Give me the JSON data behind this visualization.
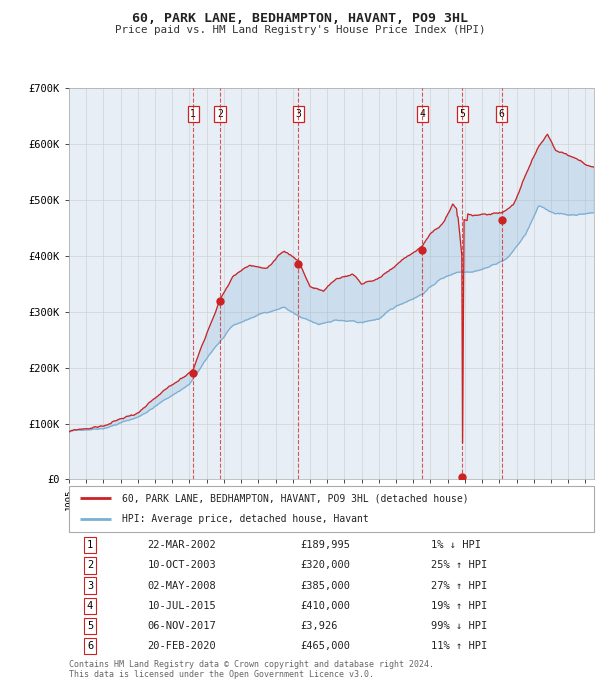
{
  "title": "60, PARK LANE, BEDHAMPTON, HAVANT, PO9 3HL",
  "subtitle": "Price paid vs. HM Land Registry's House Price Index (HPI)",
  "hpi_color": "#7bafd4",
  "price_color": "#cc2222",
  "background_color": "#ffffff",
  "plot_bg_color": "#e8eef6",
  "grid_color": "#cccccc",
  "ylim": [
    0,
    700000
  ],
  "yticks": [
    0,
    100000,
    200000,
    300000,
    400000,
    500000,
    600000,
    700000
  ],
  "ytick_labels": [
    "£0",
    "£100K",
    "£200K",
    "£300K",
    "£400K",
    "£500K",
    "£600K",
    "£700K"
  ],
  "transactions": [
    {
      "num": 1,
      "date": "2002-03-22",
      "price": 189995,
      "pct": "1%",
      "dir": "↓",
      "year_x": 2002.22
    },
    {
      "num": 2,
      "date": "2003-10-10",
      "price": 320000,
      "pct": "25%",
      "dir": "↑",
      "year_x": 2003.77
    },
    {
      "num": 3,
      "date": "2008-05-02",
      "price": 385000,
      "pct": "27%",
      "dir": "↑",
      "year_x": 2008.33
    },
    {
      "num": 4,
      "date": "2015-07-10",
      "price": 410000,
      "pct": "19%",
      "dir": "↑",
      "year_x": 2015.52
    },
    {
      "num": 5,
      "date": "2017-11-06",
      "price": 3926,
      "pct": "99%",
      "dir": "↓",
      "year_x": 2017.85
    },
    {
      "num": 6,
      "date": "2020-02-20",
      "price": 465000,
      "pct": "11%",
      "dir": "↑",
      "year_x": 2020.14
    }
  ],
  "legend_entries": [
    "60, PARK LANE, BEDHAMPTON, HAVANT, PO9 3HL (detached house)",
    "HPI: Average price, detached house, Havant"
  ],
  "table_rows": [
    [
      "1",
      "22-MAR-2002",
      "£189,995",
      "1% ↓ HPI"
    ],
    [
      "2",
      "10-OCT-2003",
      "£320,000",
      "25% ↑ HPI"
    ],
    [
      "3",
      "02-MAY-2008",
      "£385,000",
      "27% ↑ HPI"
    ],
    [
      "4",
      "10-JUL-2015",
      "£410,000",
      "19% ↑ HPI"
    ],
    [
      "5",
      "06-NOV-2017",
      "£3,926",
      "99% ↓ HPI"
    ],
    [
      "6",
      "20-FEB-2020",
      "£465,000",
      "11% ↑ HPI"
    ]
  ],
  "footer": "Contains HM Land Registry data © Crown copyright and database right 2024.\nThis data is licensed under the Open Government Licence v3.0.",
  "xmin": 1995.0,
  "xmax": 2025.5
}
